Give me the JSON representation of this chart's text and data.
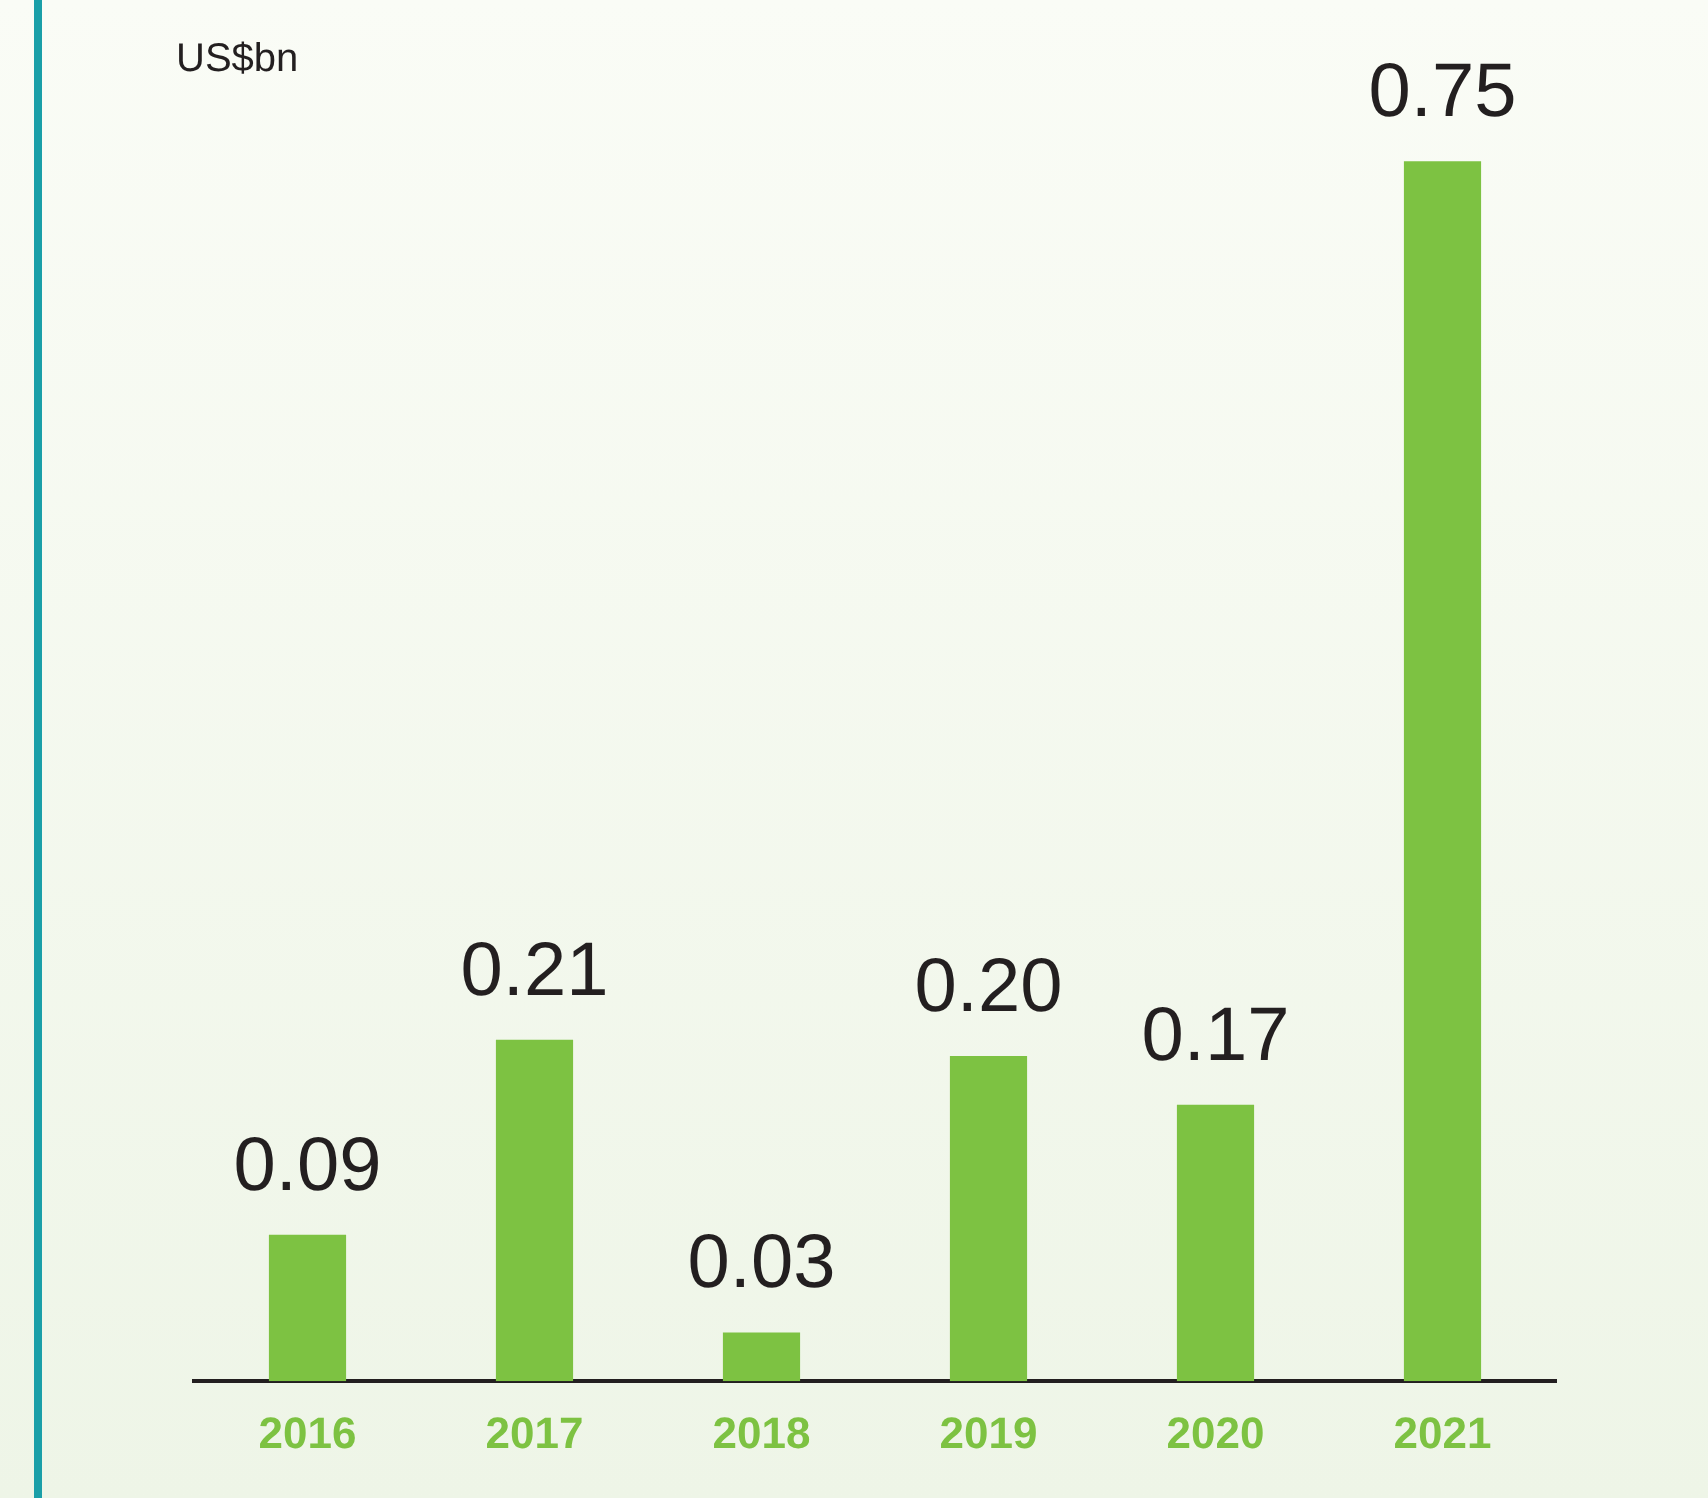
{
  "chart_data": {
    "type": "bar",
    "ylabel": "US$bn",
    "categories": [
      "2016",
      "2017",
      "2018",
      "2019",
      "2020",
      "2021"
    ],
    "values": [
      0.09,
      0.21,
      0.03,
      0.2,
      0.17,
      0.75
    ],
    "value_labels": [
      "0.09",
      "0.21",
      "0.03",
      "0.20",
      "0.17",
      "0.75"
    ],
    "color": "#7dc242",
    "grid": false,
    "legend": false
  }
}
